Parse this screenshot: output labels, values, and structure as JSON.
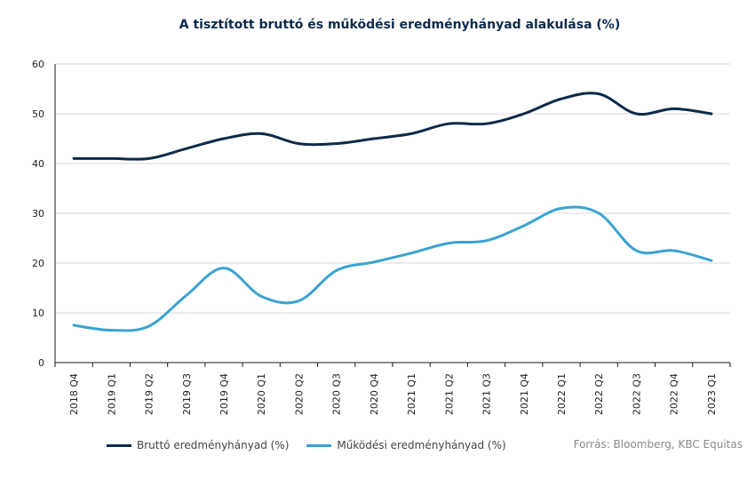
{
  "chart_data": {
    "type": "line",
    "title": "A tisztított bruttó és működési eredményhányad alakulása (%)",
    "categories": [
      "2018 Q4",
      "2019 Q1",
      "2019 Q2",
      "2019 Q3",
      "2019 Q4",
      "2020 Q1",
      "2020 Q2",
      "2020 Q3",
      "2020 Q4",
      "2021 Q1",
      "2021 Q2",
      "2021 Q3",
      "2021 Q4",
      "2022 Q1",
      "2022 Q2",
      "2022 Q3",
      "2022 Q4",
      "2023 Q1"
    ],
    "series": [
      {
        "name": "Bruttó eredményhányad (%)",
        "color": "#0d2a4a",
        "values": [
          41,
          41,
          41,
          43,
          45,
          46,
          44,
          44,
          45,
          46,
          48,
          48,
          50,
          53,
          54,
          50,
          51,
          50
        ]
      },
      {
        "name": "Működési eredményhányad (%)",
        "color": "#3aa3d0",
        "values": [
          7.5,
          6.5,
          7.3,
          13.5,
          19,
          13.3,
          12.4,
          18.5,
          20.2,
          22,
          24,
          24.5,
          27.5,
          31,
          30,
          22.5,
          22.5,
          20.5
        ]
      }
    ],
    "ylim": [
      0,
      60
    ],
    "yticks": [
      0,
      10,
      20,
      30,
      40,
      50,
      60
    ],
    "grid": true,
    "legend": "bottom"
  },
  "source": "Forrás: Bloomberg, KBC Equitas"
}
